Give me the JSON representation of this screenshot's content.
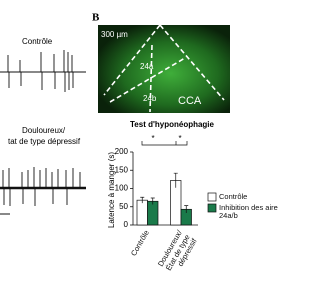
{
  "panel_label": "B",
  "left": {
    "trace_1_label": "Contrôle",
    "trace_2_label_1": "Douloureux/",
    "trace_2_label_2": "tat de type dépressif"
  },
  "image": {
    "scale": "300 µm",
    "region_1": "24a",
    "region_2": "24b",
    "region_3": "CCA"
  },
  "chart_data": {
    "type": "bar",
    "title": "Test d'hyponéophagie",
    "y_label": "Latence à manger (s)",
    "categories": [
      "Contrôle",
      "Douloureux/ État de type dépressif"
    ],
    "series": [
      {
        "name": "Contrôle",
        "color": "#ffffff",
        "values": [
          68,
          122
        ],
        "errors": [
          8,
          20
        ]
      },
      {
        "name": "Inhibition des aire 24a/b",
        "color": "#1a7a4a",
        "values": [
          65,
          43
        ],
        "errors": [
          9,
          10
        ]
      }
    ],
    "ylim": [
      0,
      200
    ],
    "yticks": [
      0,
      50,
      100,
      150,
      200
    ],
    "annotations": [
      "*",
      "*"
    ]
  }
}
